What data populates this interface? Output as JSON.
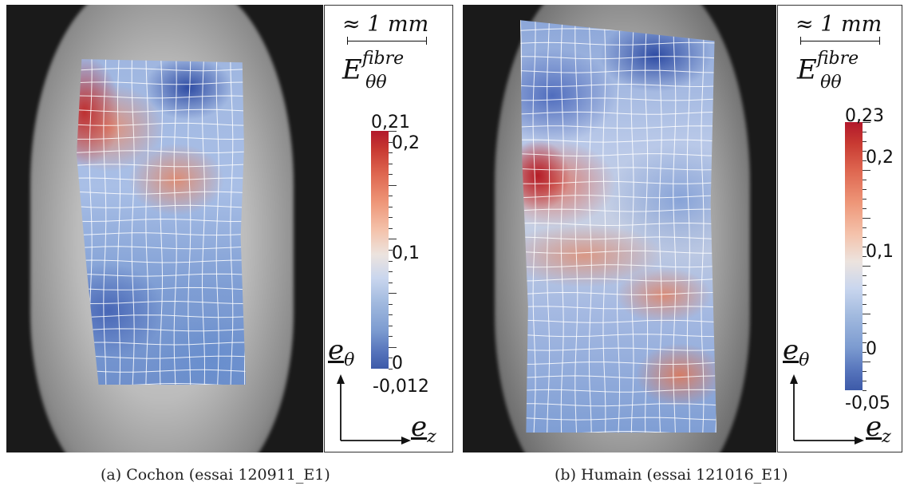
{
  "panels": [
    {
      "id": "a",
      "caption": "(a)  Cochon (essai 120911_E1)",
      "scale_label": "≈ 1 mm",
      "quantity_base": "E",
      "quantity_sup": "fibre",
      "quantity_sub": "θθ",
      "ticks": [
        "0,21",
        "0,2",
        "0,1",
        "0",
        "-0,012"
      ],
      "axis_theta": "e",
      "axis_theta_sub": "θ",
      "axis_z": "e",
      "axis_z_sub": "z"
    },
    {
      "id": "b",
      "caption": "(b)  Humain (essai 121016_E1)",
      "scale_label": "≈ 1 mm",
      "quantity_base": "E",
      "quantity_sup": "fibre",
      "quantity_sub": "θθ",
      "ticks": [
        "0,23",
        "0,2",
        "0,1",
        "0",
        "-0,05"
      ],
      "axis_theta": "e",
      "axis_theta_sub": "θ",
      "axis_z": "e",
      "axis_z_sub": "z"
    }
  ],
  "colors": {
    "high": "#b2182b",
    "mid": "#e8e0dc",
    "low": "#3d5aa8"
  }
}
